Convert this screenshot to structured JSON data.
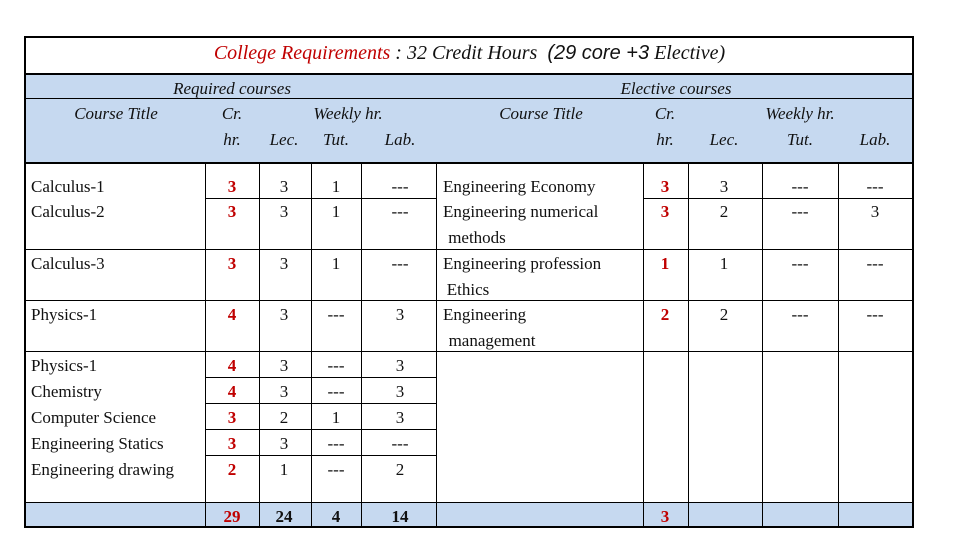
{
  "title": {
    "part1": "College Requirements",
    "sep": " : ",
    "part2": "32 Credit Hours",
    "part3": "(29 core +3",
    "part4": " Elective)"
  },
  "headers": {
    "required": "Required courses",
    "elective": "Elective courses",
    "course_title": "Course Title",
    "cr_line1": "Cr.",
    "cr_line2": "hr.",
    "weekly": "Weekly hr.",
    "lec": "Lec.",
    "tut": "Tut.",
    "lab": "Lab."
  },
  "required_rows": [
    {
      "title": "Calculus-1",
      "cr": "3",
      "lec": "3",
      "tut": "1",
      "lab": "---"
    },
    {
      "title": "Calculus-2",
      "cr": "3",
      "lec": "3",
      "tut": "1",
      "lab": "---"
    },
    {
      "title": "Calculus-3",
      "cr": "3",
      "lec": "3",
      "tut": "1",
      "lab": "---"
    },
    {
      "title": "Physics-1",
      "cr": "4",
      "lec": "3",
      "tut": "---",
      "lab": "3"
    },
    {
      "title": "Physics-1",
      "cr": "4",
      "lec": "3",
      "tut": "---",
      "lab": "3"
    },
    {
      "title": "Chemistry",
      "cr": "4",
      "lec": "3",
      "tut": "---",
      "lab": "3"
    },
    {
      "title": "Computer Science",
      "cr": "3",
      "lec": "2",
      "tut": "1",
      "lab": "3"
    },
    {
      "title": "Engineering Statics",
      "cr": "3",
      "lec": "3",
      "tut": "---",
      "lab": "---"
    },
    {
      "title": "Engineering drawing",
      "cr": "2",
      "lec": "1",
      "tut": "---",
      "lab": "2"
    }
  ],
  "elective_rows": [
    {
      "title_lines": [
        "Engineering Economy"
      ],
      "cr": "3",
      "lec": "3",
      "tut": "---",
      "lab": "---"
    },
    {
      "title_lines": [
        "Engineering numerical",
        "methods"
      ],
      "cr": "3",
      "lec": "2",
      "tut": "---",
      "lab": "3"
    },
    {
      "title_lines": [
        "Engineering profession",
        "Ethics"
      ],
      "cr": "1",
      "lec": "1",
      "tut": "---",
      "lab": "---"
    },
    {
      "title_lines": [
        "Engineering",
        "management"
      ],
      "cr": "2",
      "lec": "2",
      "tut": "---",
      "lab": "---"
    }
  ],
  "totals": {
    "cr": "29",
    "lec": "24",
    "tut": "4",
    "lab": "14",
    "elective_cr": "3"
  },
  "colors": {
    "header_fill": "#c6d9f0",
    "accent": "#c00000",
    "grid": "#000000"
  }
}
